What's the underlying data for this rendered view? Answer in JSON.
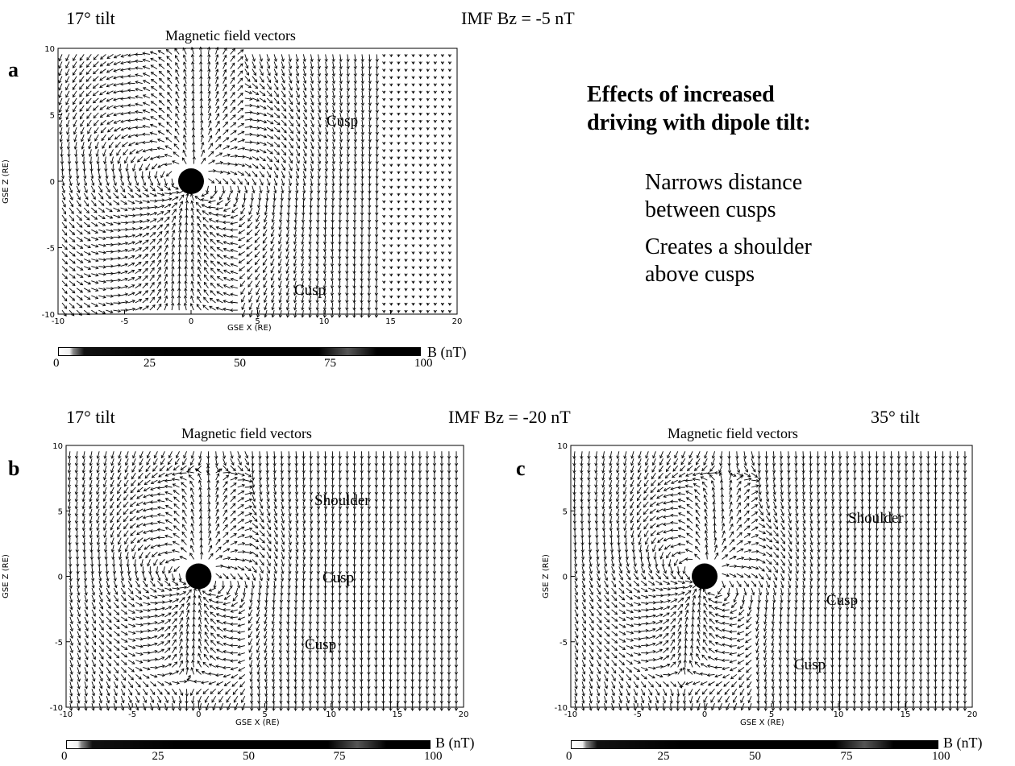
{
  "panel_a": {
    "letter": "a",
    "tilt": "17° tilt",
    "header": "IMF Bz = -5 nT",
    "plot_title": "Magnetic field vectors",
    "ylabel": "GSE Z (RE)",
    "xlabel": "GSE X (RE)",
    "xticks": [
      "-10",
      "-5",
      "0",
      "5",
      "10",
      "15",
      "20"
    ],
    "yticks": [
      "10",
      "5",
      "0",
      "-5",
      "-10"
    ],
    "annotations": [
      "Cusp",
      "Cusp"
    ],
    "colorbar": {
      "ticks": [
        "0",
        "25",
        "50",
        "75",
        "100"
      ],
      "unit": "B (nT)"
    },
    "field_extent_x": 14
  },
  "panel_b": {
    "letter": "b",
    "tilt": "17° tilt",
    "plot_title": "Magnetic field vectors",
    "ylabel": "GSE Z (RE)",
    "xlabel": "GSE X (RE)",
    "xticks": [
      "-10",
      "-5",
      "0",
      "5",
      "10",
      "15",
      "20"
    ],
    "yticks": [
      "10",
      "5",
      "0",
      "-5",
      "-10"
    ],
    "annotations": [
      "Shoulder",
      "Cusp",
      "Cusp"
    ],
    "colorbar": {
      "ticks": [
        "0",
        "25",
        "50",
        "75",
        "100"
      ],
      "unit": "B (nT)"
    },
    "field_extent_x": 20
  },
  "panel_c": {
    "letter": "c",
    "tilt": "35° tilt",
    "plot_title": "Magnetic field vectors",
    "ylabel": "GSE Z (RE)",
    "xlabel": "GSE X (RE)",
    "xticks": [
      "-10",
      "-5",
      "0",
      "5",
      "10",
      "15",
      "20"
    ],
    "yticks": [
      "10",
      "5",
      "0",
      "-5",
      "-10"
    ],
    "annotations": [
      "Shoulder",
      "Cusp",
      "Cusp"
    ],
    "colorbar": {
      "ticks": [
        "0",
        "25",
        "50",
        "75",
        "100"
      ],
      "unit": "B (nT)"
    },
    "field_extent_x": 20
  },
  "middle_header": "IMF Bz = -20 nT",
  "text_box": {
    "heading_line1": "Effects of increased",
    "heading_line2": "driving with dipole tilt:",
    "point1_line1": "Narrows distance",
    "point1_line2": "between cusps",
    "point2_line1": "Creates a shoulder",
    "point2_line2": "above cusps"
  }
}
